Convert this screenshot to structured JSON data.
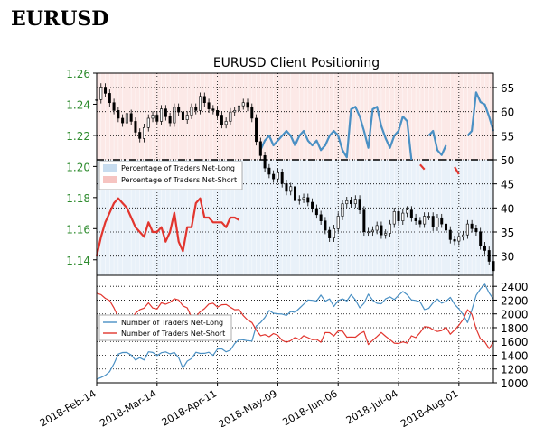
{
  "page": {
    "title": "EURUSD"
  },
  "chart_data": [
    {
      "type": "line",
      "title": "EURUSD Client Positioning",
      "xlabel": "",
      "ylabel": "",
      "x_ticks": [
        "2018-Feb-14",
        "2018-Mar-14",
        "2018-Apr-11",
        "2018-May-09",
        "2018-Jun-06",
        "2018-Jul-04",
        "2018-Aug-01"
      ],
      "price_axis": {
        "side": "left",
        "ylim": [
          1.13,
          1.26
        ],
        "ticks": [
          "1.26",
          "1.24",
          "1.22",
          "1.20",
          "1.18",
          "1.16",
          "1.14"
        ]
      },
      "percent_axis": {
        "side": "right",
        "ylim": [
          26,
          68
        ],
        "ticks": [
          "65",
          "60",
          "55",
          "50",
          "45",
          "40",
          "35",
          "30"
        ]
      },
      "reference_line": {
        "value": 50,
        "style": "dashed"
      },
      "legend": {
        "placement": "center-left",
        "entries": [
          "Percentage of Traders Net-Long",
          "Percentage of Traders Net-Short"
        ]
      },
      "colors": {
        "price": "#000000",
        "net_long": "#4a90c4",
        "net_short": "#e2352e",
        "price_axis": "#2e8b2e"
      },
      "x": [
        0,
        2,
        4,
        6,
        8,
        10,
        12,
        14,
        16,
        18,
        20,
        22,
        24,
        26,
        28,
        30,
        32,
        34,
        36,
        38,
        40,
        42,
        44,
        46,
        48,
        50,
        52,
        54,
        56,
        58,
        60,
        62,
        64,
        66,
        68,
        70,
        72,
        74,
        76,
        78,
        80,
        82,
        84,
        86,
        88,
        90,
        92,
        94,
        96,
        98,
        100,
        102,
        104,
        106,
        108,
        110,
        112,
        114,
        116,
        118,
        120,
        122,
        124,
        126,
        128,
        130,
        132,
        134,
        136,
        138,
        140,
        142,
        144,
        146,
        148,
        150,
        152,
        154,
        156,
        158,
        160,
        162,
        164,
        166,
        168,
        170,
        172,
        174,
        176,
        178,
        180,
        182,
        184
      ],
      "series": [
        {
          "name": "EURUSD",
          "axis": "price",
          "values": [
            1.243,
            1.251,
            1.247,
            1.241,
            1.236,
            1.231,
            1.228,
            1.234,
            1.229,
            1.222,
            1.218,
            1.225,
            1.231,
            1.233,
            1.229,
            1.237,
            1.232,
            1.228,
            1.238,
            1.235,
            1.23,
            1.233,
            1.238,
            1.236,
            1.245,
            1.241,
            1.237,
            1.236,
            1.233,
            1.227,
            1.229,
            1.235,
            1.236,
            1.239,
            1.241,
            1.238,
            1.231,
            1.216,
            1.207,
            1.199,
            1.195,
            1.192,
            1.196,
            1.189,
            1.184,
            1.187,
            1.178,
            1.179,
            1.18,
            1.177,
            1.173,
            1.169,
            1.165,
            1.159,
            1.154,
            1.16,
            1.168,
            1.176,
            1.178,
            1.176,
            1.179,
            1.172,
            1.158,
            1.158,
            1.159,
            1.162,
            1.156,
            1.157,
            1.163,
            1.171,
            1.165,
            1.17,
            1.172,
            1.167,
            1.165,
            1.163,
            1.168,
            1.168,
            1.161,
            1.167,
            1.163,
            1.159,
            1.153,
            1.152,
            1.155,
            1.156,
            1.163,
            1.16,
            1.158,
            1.149,
            1.146,
            1.139,
            1.133
          ]
        },
        {
          "name": "Percentage of Traders Net-Long",
          "axis": "percent",
          "values": [
            null,
            null,
            null,
            null,
            null,
            null,
            null,
            null,
            null,
            null,
            null,
            null,
            null,
            null,
            null,
            null,
            null,
            null,
            null,
            null,
            null,
            null,
            null,
            null,
            null,
            null,
            null,
            null,
            null,
            null,
            null,
            null,
            null,
            null,
            null,
            null,
            null,
            null,
            52.0,
            54.0,
            55.0,
            53.0,
            54.0,
            55.0,
            56.0,
            55.0,
            53.0,
            55.0,
            56.0,
            54.0,
            53.0,
            54.0,
            52.0,
            53.0,
            55.0,
            56.0,
            55.0,
            52.0,
            50.5,
            60.5,
            61.0,
            59.0,
            56.0,
            52.5,
            60.5,
            61.0,
            57.0,
            54.5,
            52.5,
            55.0,
            56.0,
            59.0,
            58.0,
            50.0,
            null,
            null,
            null,
            55.0,
            56.0,
            52.0,
            51.0,
            53.0,
            null,
            null,
            null,
            null,
            55.0,
            56.0,
            64.0,
            62.0,
            61.5,
            59.0,
            56.0
          ]
        },
        {
          "name": "Percentage of Traders Net-Short",
          "axis": "percent",
          "values": [
            30.0,
            34.0,
            37.0,
            39.0,
            41.0,
            42.0,
            41.0,
            40.0,
            38.0,
            36.0,
            35.0,
            34.0,
            37.0,
            35.0,
            35.0,
            36.0,
            33.0,
            35.0,
            39.0,
            33.0,
            31.0,
            36.0,
            36.0,
            41.0,
            42.0,
            38.0,
            38.0,
            37.0,
            37.0,
            37.0,
            36.0,
            38.0,
            38.0,
            37.5,
            null,
            null,
            null,
            null,
            null,
            null,
            null,
            null,
            null,
            null,
            null,
            null,
            null,
            null,
            null,
            null,
            null,
            null,
            null,
            null,
            null,
            null,
            null,
            null,
            null,
            null,
            null,
            null,
            null,
            null,
            null,
            null,
            null,
            null,
            null,
            null,
            null,
            null,
            null,
            null,
            null,
            49.0,
            48.0,
            null,
            null,
            null,
            null,
            null,
            null,
            48.5,
            47.0,
            null,
            null,
            null,
            null,
            null,
            null,
            null,
            null
          ]
        }
      ]
    },
    {
      "type": "line",
      "title": "",
      "xlabel": "",
      "ylabel": "",
      "x_ticks": [
        "2018-Feb-14",
        "2018-Mar-14",
        "2018-Apr-11",
        "2018-May-09",
        "2018-Jun-06",
        "2018-Jul-04",
        "2018-Aug-01"
      ],
      "count_axis": {
        "side": "right",
        "ylim": [
          1000,
          2560
        ],
        "ticks": [
          "2400",
          "2200",
          "2000",
          "1800",
          "1600",
          "1400",
          "1200",
          "1000"
        ]
      },
      "legend": {
        "placement": "center-left",
        "entries": [
          "Number of Traders Net-Long",
          "Number of Traders Net-Short"
        ]
      },
      "colors": {
        "net_long": "#4a90c4",
        "net_short": "#e2352e"
      },
      "x": [
        0,
        2,
        4,
        6,
        8,
        10,
        12,
        14,
        16,
        18,
        20,
        22,
        24,
        26,
        28,
        30,
        32,
        34,
        36,
        38,
        40,
        42,
        44,
        46,
        48,
        50,
        52,
        54,
        56,
        58,
        60,
        62,
        64,
        66,
        68,
        70,
        72,
        74,
        76,
        78,
        80,
        82,
        84,
        86,
        88,
        90,
        92,
        94,
        96,
        98,
        100,
        102,
        104,
        106,
        108,
        110,
        112,
        114,
        116,
        118,
        120,
        122,
        124,
        126,
        128,
        130,
        132,
        134,
        136,
        138,
        140,
        142,
        144,
        146,
        148,
        150,
        152,
        154,
        156,
        158,
        160,
        162,
        164,
        166,
        168,
        170,
        172,
        174,
        176,
        178,
        180,
        182,
        184
      ],
      "series": [
        {
          "name": "Number of Traders Net-Long",
          "values": [
            1050,
            1078,
            1107,
            1161,
            1277,
            1417,
            1439,
            1441,
            1402,
            1329,
            1364,
            1331,
            1449,
            1441,
            1395,
            1436,
            1448,
            1419,
            1441,
            1364,
            1213,
            1315,
            1352,
            1443,
            1426,
            1428,
            1443,
            1399,
            1489,
            1493,
            1450,
            1475,
            1569,
            1629,
            1624,
            1611,
            1606,
            1825,
            1875,
            1948,
            2050,
            2009,
            2002,
            1998,
            1978,
            2036,
            2023,
            2081,
            2141,
            2202,
            2197,
            2186,
            2273,
            2184,
            2218,
            2108,
            2191,
            2219,
            2188,
            2280,
            2203,
            2088,
            2154,
            2286,
            2199,
            2154,
            2147,
            2218,
            2247,
            2207,
            2269,
            2325,
            2278,
            2203,
            2195,
            2174,
            2063,
            2080,
            2160,
            2216,
            2156,
            2183,
            2240,
            2138,
            2072,
            1987,
            1875,
            2056,
            2269,
            2363,
            2432,
            2306,
            2214
          ]
        },
        {
          "name": "Number of Traders Net-Short",
          "values": [
            2300,
            2280,
            2226,
            2194,
            2087,
            1954,
            1976,
            1937,
            1923,
            2009,
            2060,
            2084,
            2160,
            2086,
            2071,
            2161,
            2140,
            2167,
            2221,
            2202,
            2117,
            2088,
            1953,
            1964,
            2030,
            2076,
            2143,
            2155,
            2098,
            2132,
            2136,
            2097,
            2060,
            2065,
            1975,
            1911,
            1875,
            1765,
            1683,
            1699,
            1669,
            1715,
            1690,
            1616,
            1589,
            1612,
            1659,
            1627,
            1683,
            1656,
            1625,
            1631,
            1589,
            1730,
            1728,
            1679,
            1752,
            1751,
            1662,
            1664,
            1662,
            1713,
            1745,
            1556,
            1616,
            1671,
            1730,
            1675,
            1626,
            1575,
            1570,
            1594,
            1575,
            1682,
            1656,
            1729,
            1815,
            1809,
            1772,
            1745,
            1758,
            1808,
            1705,
            1768,
            1835,
            1921,
            2060,
            1996,
            1783,
            1636,
            1593,
            1495,
            1590
          ]
        }
      ]
    }
  ]
}
